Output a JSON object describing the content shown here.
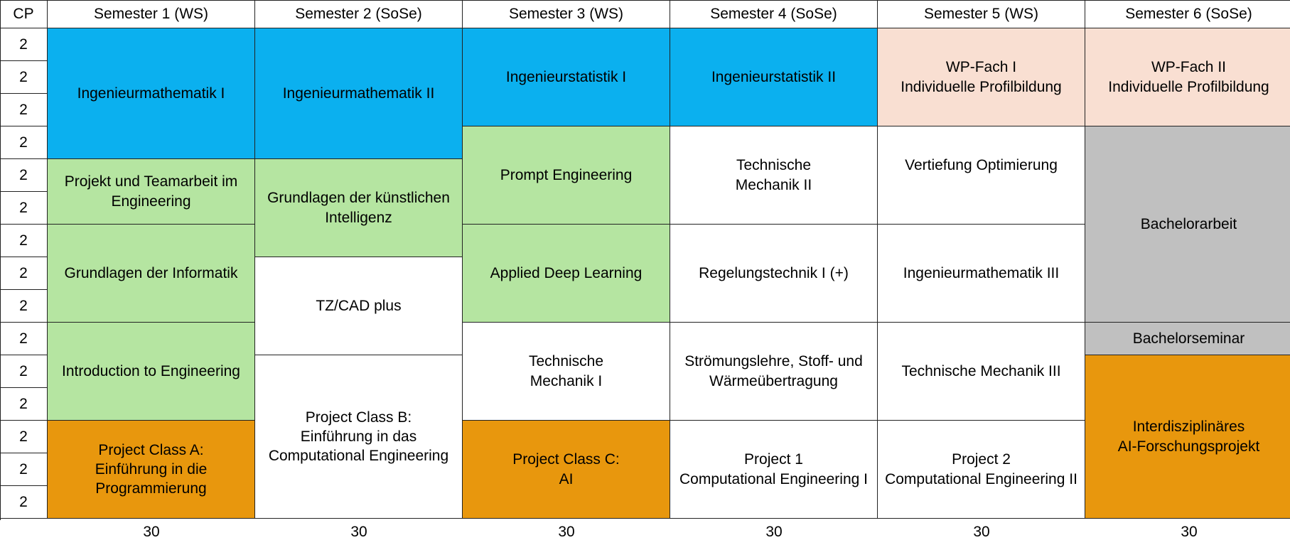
{
  "header": {
    "cp_label": "CP",
    "semesters": [
      "Semester 1 (WS)",
      "Semester 2 (SoSe)",
      "Semester 3 (WS)",
      "Semester 4 (SoSe)",
      "Semester 5 (WS)",
      "Semester 6 (SoSe)"
    ]
  },
  "cp_rows": [
    "2",
    "2",
    "2",
    "2",
    "2",
    "2",
    "2",
    "2",
    "2",
    "2",
    "2",
    "2",
    "2",
    "2",
    "2"
  ],
  "colors": {
    "blue": "#0bb0ef",
    "green": "#b5e5a1",
    "orange": "#e8970d",
    "peach": "#f9dfd2",
    "grey": "#c0c0c0",
    "white": "#ffffff"
  },
  "semester_modules": [
    [
      {
        "name": "Ingenieurmathematik I",
        "rows": 4,
        "color": "blue"
      },
      {
        "name": "Projekt und Teamarbeit im Engineering",
        "rows": 2,
        "color": "green"
      },
      {
        "name": "Grundlagen der Informatik",
        "rows": 3,
        "color": "green"
      },
      {
        "name": "Introduction to Engineering",
        "rows": 3,
        "color": "green"
      },
      {
        "name": "Project Class A:\nEinführung in die\nProgrammierung",
        "rows": 3,
        "color": "orange"
      }
    ],
    [
      {
        "name": "Ingenieurmathematik II",
        "rows": 4,
        "color": "blue"
      },
      {
        "name": "Grundlagen der künstlichen\nIntelligenz",
        "rows": 3,
        "color": "green"
      },
      {
        "name": "TZ/CAD plus",
        "rows": 3,
        "color": "white"
      },
      {
        "name": "Project Class B:\nEinführung in das\nComputational Engineering",
        "rows": 5,
        "color": "white"
      }
    ],
    [
      {
        "name": "Ingenieurstatistik I",
        "rows": 3,
        "color": "blue"
      },
      {
        "name": "Prompt Engineering",
        "rows": 3,
        "color": "green"
      },
      {
        "name": "Applied Deep Learning",
        "rows": 3,
        "color": "green"
      },
      {
        "name": "Technische\nMechanik I",
        "rows": 3,
        "color": "white"
      },
      {
        "name": "Project Class C:\nAI",
        "rows": 3,
        "color": "orange"
      }
    ],
    [
      {
        "name": "Ingenieurstatistik II",
        "rows": 3,
        "color": "blue"
      },
      {
        "name": "Technische\nMechanik II",
        "rows": 3,
        "color": "white"
      },
      {
        "name": "Regelungstechnik I (+)",
        "rows": 3,
        "color": "white"
      },
      {
        "name": "Strömungslehre, Stoff- und\nWärmeübertragung",
        "rows": 3,
        "color": "white"
      },
      {
        "name": "Project 1\nComputational Engineering I",
        "rows": 3,
        "color": "white"
      }
    ],
    [
      {
        "name": "WP-Fach I\nIndividuelle Profilbildung",
        "rows": 3,
        "color": "peach"
      },
      {
        "name": "Vertiefung Optimierung",
        "rows": 3,
        "color": "white",
        "valign": "upper"
      },
      {
        "name": "Ingenieurmathematik III",
        "rows": 3,
        "color": "white"
      },
      {
        "name": "Technische Mechanik III",
        "rows": 3,
        "color": "white"
      },
      {
        "name": "Project 2\nComputational Engineering II",
        "rows": 3,
        "color": "white"
      }
    ],
    [
      {
        "name": "WP-Fach II\nIndividuelle Profilbildung",
        "rows": 3,
        "color": "peach"
      },
      {
        "name": "Bachelorarbeit",
        "rows": 6,
        "color": "grey"
      },
      {
        "name": "Bachelorseminar",
        "rows": 1,
        "color": "grey"
      },
      {
        "name": "Interdisziplinäres\nAI-Forschungsprojekt",
        "rows": 5,
        "color": "orange"
      }
    ]
  ],
  "totals": [
    "30",
    "30",
    "30",
    "30",
    "30",
    "30"
  ]
}
